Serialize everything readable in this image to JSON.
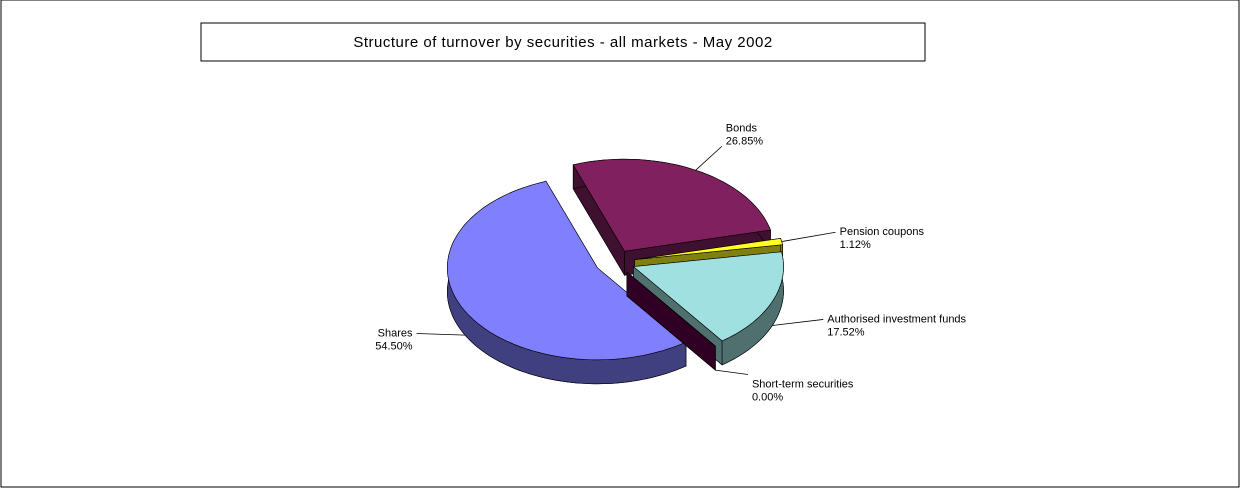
{
  "chart_data": {
    "type": "pie",
    "title": "Structure of turnover by securities - all markets - May 2002",
    "categories": [
      "Bonds",
      "Pension coupons",
      "Authorised investment funds",
      "Short-term securities",
      "Shares"
    ],
    "values": [
      26.85,
      1.12,
      17.52,
      0,
      54.5
    ],
    "value_labels": [
      "26.85%",
      "1.12%",
      "17.52%",
      "0.00%",
      "54.50%"
    ],
    "colors": [
      "#80205f",
      "#ffff20",
      "#a0e0e0",
      "#600048",
      "#8080ff"
    ]
  }
}
